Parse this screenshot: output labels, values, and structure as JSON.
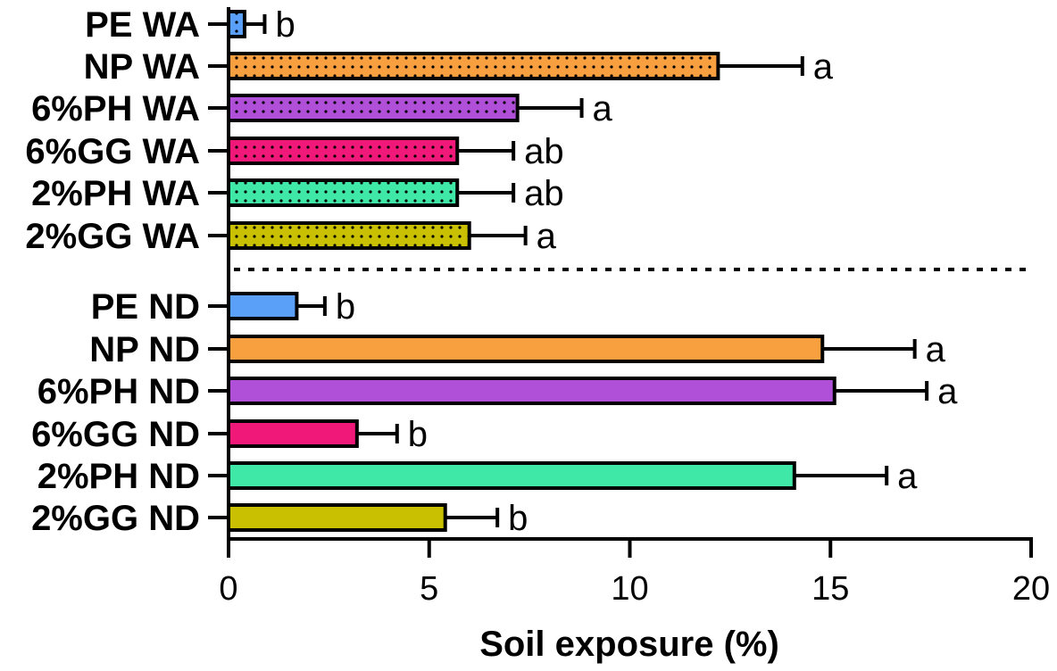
{
  "chart_data": {
    "type": "bar",
    "orientation": "horizontal",
    "xlabel": "Soil exposure (%)",
    "xlim": [
      0,
      20
    ],
    "xticks": [
      0,
      5,
      10,
      15,
      20
    ],
    "groups": [
      {
        "pattern": "dotted",
        "bars": [
          {
            "label": "PE WA",
            "value": 0.4,
            "error": 0.5,
            "letter": "b",
            "color": "#5aa0f8"
          },
          {
            "label": "NP WA",
            "value": 12.2,
            "error": 2.1,
            "letter": "a",
            "color": "#f8a040"
          },
          {
            "label": "6%PH WA",
            "value": 7.2,
            "error": 1.6,
            "letter": "a",
            "color": "#b050d8"
          },
          {
            "label": "6%GG WA",
            "value": 5.7,
            "error": 1.4,
            "letter": "ab",
            "color": "#f01878"
          },
          {
            "label": "2%PH WA",
            "value": 5.7,
            "error": 1.4,
            "letter": "ab",
            "color": "#40e8a8"
          },
          {
            "label": "2%GG WA",
            "value": 6.0,
            "error": 1.4,
            "letter": "a",
            "color": "#c8c000"
          }
        ]
      },
      {
        "pattern": "solid",
        "bars": [
          {
            "label": "PE ND",
            "value": 1.7,
            "error": 0.7,
            "letter": "b",
            "color": "#5aa0f8"
          },
          {
            "label": "NP ND",
            "value": 14.8,
            "error": 2.3,
            "letter": "a",
            "color": "#f8a040"
          },
          {
            "label": "6%PH ND",
            "value": 15.1,
            "error": 2.3,
            "letter": "a",
            "color": "#b050d8"
          },
          {
            "label": "6%GG ND",
            "value": 3.2,
            "error": 1.0,
            "letter": "b",
            "color": "#f01878"
          },
          {
            "label": "2%PH ND",
            "value": 14.1,
            "error": 2.3,
            "letter": "a",
            "color": "#40e8a8"
          },
          {
            "label": "2%GG ND",
            "value": 5.4,
            "error": 1.3,
            "letter": "b",
            "color": "#c8c000"
          }
        ]
      }
    ]
  }
}
